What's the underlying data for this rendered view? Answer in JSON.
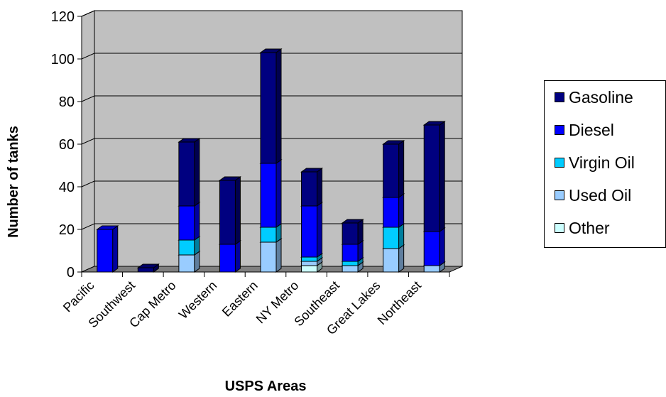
{
  "chart_data": {
    "type": "bar",
    "stacked": true,
    "style": "3d-column",
    "xlabel": "USPS Areas",
    "ylabel": "Number of tanks",
    "ylim": [
      0,
      120
    ],
    "yticks": [
      "0",
      "20",
      "40",
      "60",
      "80",
      "100",
      "120"
    ],
    "grid": true,
    "legend_position": "right",
    "categories": [
      "Pacific",
      "Southwest",
      "Cap Metro",
      "Western",
      "Eastern",
      "NY Metro",
      "Southeast",
      "Great Lakes",
      "Northeast"
    ],
    "series": [
      {
        "name": "Other",
        "color": "#ccffff",
        "values": [
          0,
          0,
          0,
          0,
          0,
          3,
          0,
          0,
          0
        ]
      },
      {
        "name": "Used Oil",
        "color": "#99ccff",
        "values": [
          0,
          0,
          8,
          0,
          14,
          2,
          3,
          11,
          3
        ]
      },
      {
        "name": "Virgin Oil",
        "color": "#00ccff",
        "values": [
          0,
          0,
          7,
          0,
          7,
          2,
          2,
          10,
          0
        ]
      },
      {
        "name": "Diesel",
        "color": "#0000ff",
        "values": [
          20,
          0,
          16,
          13,
          30,
          24,
          8,
          14,
          16
        ]
      },
      {
        "name": "Gasoline",
        "color": "#000080",
        "values": [
          0,
          2,
          30,
          30,
          52,
          16,
          10,
          25,
          50
        ]
      }
    ],
    "legend_order": [
      "Gasoline",
      "Diesel",
      "Virgin Oil",
      "Used Oil",
      "Other"
    ],
    "colors": {
      "wall": "#c0c0c0",
      "floor": "#808080"
    }
  }
}
